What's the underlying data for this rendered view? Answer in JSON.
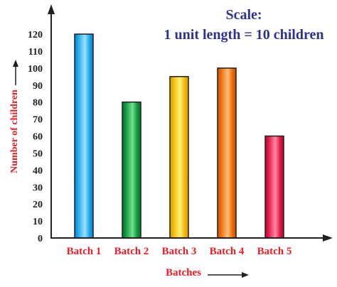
{
  "chart_data": {
    "type": "bar",
    "title_line1": "Scale:",
    "title_line2": "1 unit length = 10 children",
    "xlabel": "Batches",
    "ylabel": "Number of children",
    "categories": [
      "Batch 1",
      "Batch 2",
      "Batch 3",
      "Batch 4",
      "Batch 5"
    ],
    "values": [
      120,
      80,
      95,
      100,
      60
    ],
    "ylim": [
      0,
      125
    ],
    "yticks": [
      0,
      10,
      20,
      30,
      40,
      50,
      60,
      70,
      80,
      90,
      100,
      110,
      120
    ],
    "grid": false,
    "bar_colors": [
      [
        "#1aa8ea",
        "#9fe1ff",
        "#0a7fc6"
      ],
      [
        "#0e9a3c",
        "#6fe08e",
        "#06702a"
      ],
      [
        "#f2b705",
        "#fff27a",
        "#d99a00"
      ],
      [
        "#ec6d0b",
        "#ffc07a",
        "#c94e00"
      ],
      [
        "#e01a47",
        "#ff8aa3",
        "#b0062e"
      ]
    ],
    "colors": {
      "title": "#2e3192",
      "category_labels": "#ed1c24",
      "axis_title": "#ed1c24",
      "axis": "#231f20"
    }
  }
}
